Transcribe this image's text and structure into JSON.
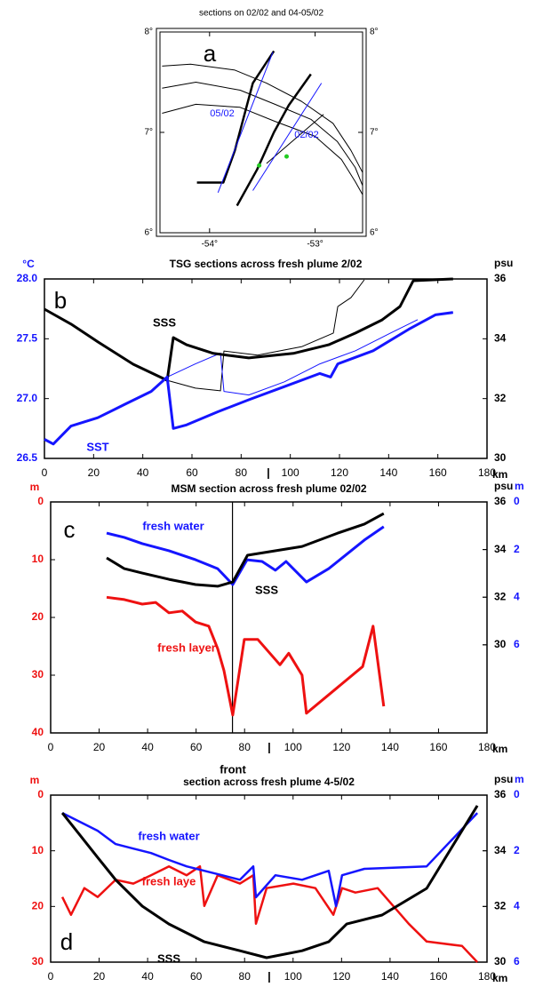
{
  "chart_data": [
    {
      "type": "map",
      "title": "sections on 02/02 and 04-05/02",
      "label": "a",
      "xlim": [
        -54.47,
        -52.55
      ],
      "ylim": [
        6,
        8
      ],
      "xticks": [
        {
          "value": -54,
          "label": "-54°"
        },
        {
          "value": -53,
          "label": "-53°"
        }
      ],
      "yticks": [
        {
          "value": 6,
          "label": "6°"
        },
        {
          "value": 7,
          "label": "7°"
        },
        {
          "value": 8,
          "label": "8°"
        }
      ],
      "series": [
        {
          "color": "#000000",
          "linewidth": 1,
          "x": [
            -54.45,
            -54.18,
            -53.76,
            -53.46,
            -53.13,
            -52.83,
            -52.66,
            -52.55
          ],
          "values": [
            7.66,
            7.68,
            7.62,
            7.49,
            7.31,
            7.09,
            6.82,
            6.6
          ]
        },
        {
          "color": "#000000",
          "linewidth": 1,
          "x": [
            -54.45,
            -54.13,
            -53.71,
            -53.38,
            -53.04,
            -52.79,
            -52.62,
            -52.55
          ],
          "values": [
            7.44,
            7.5,
            7.42,
            7.28,
            7.13,
            6.91,
            6.65,
            6.47
          ]
        },
        {
          "color": "#000000",
          "linewidth": 1,
          "x": [
            -54.45,
            -54.13,
            -53.71,
            -53.38,
            -53.0,
            -52.75,
            -52.62,
            -52.55
          ],
          "values": [
            7.19,
            7.28,
            7.25,
            7.11,
            6.96,
            6.73,
            6.51,
            6.38
          ]
        },
        {
          "color": "#000000",
          "linewidth": 1,
          "x": [
            -53.46,
            -52.92
          ],
          "values": [
            6.69,
            7.18
          ]
        },
        {
          "color": "#000000",
          "linewidth": 2.5,
          "x": [
            -54.12,
            -53.87,
            -53.76,
            -53.59,
            -53.39
          ],
          "values": [
            6.5,
            6.5,
            6.82,
            7.49,
            7.81
          ]
        },
        {
          "color": "#000000",
          "linewidth": 2.5,
          "x": [
            -53.74,
            -53.55,
            -53.39,
            -53.25,
            -53.04
          ],
          "values": [
            6.27,
            6.63,
            7.0,
            7.27,
            7.58
          ]
        },
        {
          "color": "#1515ff",
          "linewidth": 1,
          "x": [
            -53.92,
            -53.4
          ],
          "values": [
            6.4,
            7.8
          ]
        },
        {
          "color": "#1515ff",
          "linewidth": 1,
          "x": [
            -53.59,
            -52.94
          ],
          "values": [
            6.42,
            7.49
          ]
        },
        {
          "color": "#22cc22",
          "marker": true,
          "x": [
            -53.53,
            -53.27
          ],
          "values": [
            6.67,
            6.76
          ]
        }
      ],
      "annotations": [
        {
          "text": "05/02",
          "color": "#1515ff"
        },
        {
          "text": "02/02",
          "color": "#1515ff"
        }
      ]
    },
    {
      "type": "line",
      "title": "TSG sections across fresh plume 2/02",
      "label": "b",
      "xlim": [
        0,
        180
      ],
      "xticks": [
        0,
        20,
        40,
        60,
        80,
        100,
        120,
        140,
        160,
        180
      ],
      "xlabel": "km",
      "ylabel": "°C",
      "ycolor": "#1515ff",
      "ylim": [
        26.5,
        28.0
      ],
      "yticks": [
        26.5,
        {
          "value": 27,
          "label": "27.0"
        },
        27.5,
        {
          "value": 28,
          "label": "28.0"
        }
      ],
      "y2label": "psu",
      "y2color": "#000000",
      "y2lim": [
        30,
        36
      ],
      "y2ticks": [
        30,
        32,
        34,
        36
      ],
      "series": [
        {
          "color": "#000000",
          "linewidth": 1,
          "axis": "y2",
          "x": [
            49.9,
            61.4,
            71.6,
            73.0,
            86.7,
            104.8,
            117.5,
            119.3,
            124.7,
            130.1
          ],
          "values": [
            32.61,
            32.35,
            32.26,
            33.59,
            33.45,
            33.74,
            34.19,
            35.08,
            35.38,
            35.97
          ]
        },
        {
          "color": "#1515ff",
          "linewidth": 1,
          "x": [
            49.9,
            61.4,
            71.6,
            73.0,
            83.1,
            97.6,
            112.0,
            126.5,
            141.0,
            151.8
          ],
          "values": [
            27.18,
            27.29,
            27.38,
            27.06,
            27.03,
            27.14,
            27.29,
            27.4,
            27.55,
            27.66
          ]
        },
        {
          "color": "#000000",
          "linewidth": 3,
          "axis": "y2",
          "x": [
            0,
            10.8,
            21.7,
            36.1,
            49.9,
            52.4,
            57.8,
            68.7,
            83.1,
            101.2,
            115.6,
            126.5,
            137.3,
            144.6,
            150.0,
            166.2
          ],
          "values": [
            34.99,
            34.49,
            33.9,
            33.15,
            32.61,
            34.04,
            33.8,
            33.51,
            33.36,
            33.51,
            33.8,
            34.19,
            34.63,
            35.08,
            35.94,
            36.0
          ]
        },
        {
          "color": "#1515ff",
          "linewidth": 3,
          "x": [
            0,
            3.6,
            10.8,
            21.7,
            32.5,
            43.4,
            49.9,
            52.4,
            57.8,
            70.5,
            83.1,
            97.6,
            112.0,
            116.4,
            119.3,
            133.7,
            148.2,
            159.0,
            166.2
          ],
          "values": [
            26.66,
            26.62,
            26.77,
            26.84,
            26.95,
            27.06,
            27.18,
            26.75,
            26.78,
            26.89,
            26.99,
            27.1,
            27.21,
            27.18,
            27.29,
            27.4,
            27.58,
            27.7,
            27.72
          ]
        }
      ],
      "annotations": [
        {
          "text": "SSS",
          "color": "#000000"
        },
        {
          "text": "SST",
          "color": "#1515ff"
        },
        {
          "text": "|",
          "color": "#000000"
        }
      ]
    },
    {
      "type": "line",
      "title": "MSM section across fresh plume 02/02",
      "label": "c",
      "xlim": [
        0,
        180
      ],
      "xticks": [
        0,
        20,
        40,
        60,
        80,
        100,
        120,
        140,
        160,
        180
      ],
      "xlabel": "km",
      "ylabel": "m",
      "ycolor": "#ee1111",
      "ylim": [
        40,
        0
      ],
      "yticks": [
        0,
        10,
        20,
        30,
        40
      ],
      "y2label": "psu",
      "y2color": "#000000",
      "y2lim": [
        26.3,
        36
      ],
      "y2ticks": [
        30,
        32,
        34,
        36
      ],
      "y3label": "m",
      "y3color": "#1515ff",
      "y3lim": [
        9.7,
        0
      ],
      "y3ticks": [
        0,
        2,
        4,
        6
      ],
      "vline": 75,
      "series": [
        {
          "color": "#ee1111",
          "linewidth": 3,
          "x": [
            23.1,
            30.4,
            37.8,
            43.3,
            48.8,
            54.3,
            59.8,
            65.2,
            68.9,
            71.5,
            75.1,
            79.9,
            85.4,
            94.6,
            98.2,
            103.7,
            105.5,
            128.7,
            133.0,
            137.4
          ],
          "values": [
            16.5,
            16.9,
            17.7,
            17.4,
            19.2,
            18.9,
            20.8,
            21.5,
            25.4,
            29.2,
            36.9,
            23.8,
            23.8,
            28.2,
            26.2,
            30.0,
            36.6,
            28.5,
            21.5,
            35.4
          ]
        },
        {
          "color": "#1515ff",
          "linewidth": 3,
          "axis": "y3",
          "x": [
            23.1,
            30.4,
            37.8,
            48.8,
            59.8,
            68.9,
            75.1,
            81.0,
            87.2,
            92.7,
            97.1,
            105.5,
            114.7,
            129.4,
            137.4
          ],
          "values": [
            1.31,
            1.49,
            1.75,
            2.05,
            2.43,
            2.8,
            3.47,
            2.43,
            2.5,
            2.87,
            2.5,
            3.36,
            2.8,
            1.6,
            1.04
          ]
        },
        {
          "color": "#000000",
          "linewidth": 3,
          "axis": "y2",
          "x": [
            23.1,
            30.4,
            37.8,
            48.8,
            59.8,
            68.9,
            75.1,
            81.2,
            103.7,
            118.4,
            129.4,
            137.4
          ],
          "values": [
            33.65,
            33.2,
            33.01,
            32.75,
            32.53,
            32.46,
            32.64,
            33.76,
            34.13,
            34.69,
            35.07,
            35.51
          ]
        }
      ],
      "annotations": [
        {
          "text": "fresh water",
          "color": "#1515ff"
        },
        {
          "text": "fresh layer",
          "color": "#ee1111"
        },
        {
          "text": "SSS",
          "color": "#000000"
        },
        {
          "text": "|",
          "color": "#000000"
        },
        {
          "text": "front",
          "color": "#000000"
        }
      ]
    },
    {
      "type": "line",
      "title": "section across fresh plume 4-5/02",
      "label": "d",
      "xlim": [
        0,
        180
      ],
      "xticks": [
        0,
        20,
        40,
        60,
        80,
        100,
        120,
        140,
        160,
        180
      ],
      "xlabel": "km",
      "ylabel": "m",
      "ycolor": "#ee1111",
      "ylim": [
        30,
        0
      ],
      "yticks": [
        0,
        10,
        20,
        30
      ],
      "y2label": "psu",
      "y2color": "#000000",
      "y2lim": [
        30,
        36
      ],
      "y2ticks": [
        30,
        32,
        34,
        36
      ],
      "y3label": "m",
      "y3color": "#1515ff",
      "y3lim": [
        6,
        0
      ],
      "y3ticks": [
        0,
        2,
        4,
        6
      ],
      "series": [
        {
          "color": "#ee1111",
          "linewidth": 2.5,
          "x": [
            4.8,
            8.4,
            13.9,
            19.4,
            26.8,
            34.1,
            41.4,
            48.8,
            56.1,
            61.6,
            63.4,
            68.9,
            78.1,
            83.6,
            84.7,
            89.1,
            100.1,
            109.2,
            116.6,
            120.2,
            125.7,
            134.9,
            147.7,
            155.1,
            169.7,
            176.0
          ],
          "values": [
            18.3,
            21.5,
            16.7,
            18.3,
            15.2,
            15.9,
            14.4,
            12.8,
            14.4,
            12.8,
            19.9,
            14.4,
            15.9,
            14.4,
            23.1,
            16.7,
            15.9,
            16.7,
            21.5,
            16.7,
            17.5,
            16.7,
            23.1,
            26.3,
            27.1,
            30.0
          ]
        },
        {
          "color": "#1515ff",
          "linewidth": 2.5,
          "axis": "y3",
          "x": [
            4.8,
            12.1,
            19.4,
            26.8,
            34.1,
            41.4,
            48.8,
            56.1,
            63.4,
            70.7,
            78.1,
            83.6,
            84.7,
            92.7,
            103.7,
            114.7,
            117.7,
            120.2,
            129.4,
            155.1,
            176.0
          ],
          "values": [
            0.64,
            0.96,
            1.28,
            1.76,
            1.92,
            2.08,
            2.33,
            2.56,
            2.72,
            2.88,
            3.04,
            2.56,
            3.67,
            2.88,
            3.04,
            2.72,
            3.99,
            2.88,
            2.65,
            2.56,
            0.64
          ]
        },
        {
          "color": "#000000",
          "linewidth": 3,
          "axis": "y2",
          "x": [
            4.8,
            12.1,
            19.4,
            26.8,
            37.8,
            48.8,
            63.4,
            78.1,
            89.1,
            103.7,
            114.7,
            122.1,
            136.7,
            155.1,
            176.0
          ],
          "values": [
            35.36,
            34.56,
            33.76,
            32.96,
            32.01,
            31.37,
            30.73,
            30.41,
            30.16,
            30.41,
            30.73,
            31.37,
            31.69,
            32.65,
            35.62
          ]
        }
      ],
      "annotations": [
        {
          "text": "fresh water",
          "color": "#1515ff"
        },
        {
          "text": "fresh laye",
          "color": "#ee1111"
        },
        {
          "text": "SSS",
          "color": "#000000"
        },
        {
          "text": "|",
          "color": "#000000"
        }
      ]
    }
  ]
}
